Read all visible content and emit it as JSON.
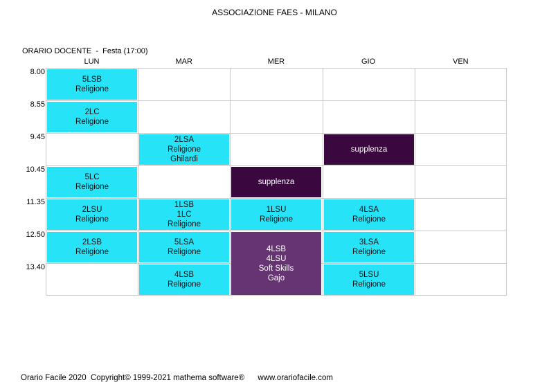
{
  "header": {
    "title": "ASSOCIAZIONE FAES - MILANO",
    "subtitle": "ORARIO DOCENTE  -  Festa (17:00)"
  },
  "days": [
    "LUN",
    "MAR",
    "MER",
    "GIO",
    "VEN"
  ],
  "times": [
    "8.00",
    "8.55",
    "9.45",
    "10.45",
    "11.35",
    "12.50",
    "13.40"
  ],
  "lessons": [
    {
      "day": 0,
      "start": 0,
      "span": 1,
      "style": "cyan",
      "lines": [
        "5LSB",
        "Religione"
      ]
    },
    {
      "day": 0,
      "start": 1,
      "span": 1,
      "style": "cyan",
      "lines": [
        "2LC",
        "Religione"
      ]
    },
    {
      "day": 1,
      "start": 2,
      "span": 1,
      "style": "cyan",
      "lines": [
        "2LSA",
        "Religione",
        "Ghilardi"
      ]
    },
    {
      "day": 3,
      "start": 2,
      "span": 1,
      "style": "dark",
      "lines": [
        "supplenza"
      ]
    },
    {
      "day": 0,
      "start": 3,
      "span": 1,
      "style": "cyan",
      "lines": [
        "5LC",
        "Religione"
      ]
    },
    {
      "day": 2,
      "start": 3,
      "span": 1,
      "style": "dark",
      "lines": [
        "supplenza"
      ]
    },
    {
      "day": 0,
      "start": 4,
      "span": 1,
      "style": "cyan",
      "lines": [
        "2LSU",
        "Religione"
      ]
    },
    {
      "day": 1,
      "start": 4,
      "span": 1,
      "style": "cyan",
      "lines": [
        "1LSB",
        "1LC",
        "Religione"
      ]
    },
    {
      "day": 2,
      "start": 4,
      "span": 1,
      "style": "cyan",
      "lines": [
        "1LSU",
        "Religione"
      ]
    },
    {
      "day": 3,
      "start": 4,
      "span": 1,
      "style": "cyan",
      "lines": [
        "4LSA",
        "Religione"
      ]
    },
    {
      "day": 0,
      "start": 5,
      "span": 1,
      "style": "cyan",
      "lines": [
        "2LSB",
        "Religione"
      ]
    },
    {
      "day": 1,
      "start": 5,
      "span": 1,
      "style": "cyan",
      "lines": [
        "5LSA",
        "Religione"
      ]
    },
    {
      "day": 2,
      "start": 5,
      "span": 2,
      "style": "purple",
      "lines": [
        "4LSB",
        "4LSU",
        "Soft Skills",
        "Gajo"
      ]
    },
    {
      "day": 3,
      "start": 5,
      "span": 1,
      "style": "cyan",
      "lines": [
        "3LSA",
        "Religione"
      ]
    },
    {
      "day": 1,
      "start": 6,
      "span": 1,
      "style": "cyan",
      "lines": [
        "4LSB",
        "Religione"
      ]
    },
    {
      "day": 3,
      "start": 6,
      "span": 1,
      "style": "cyan",
      "lines": [
        "5LSU",
        "Religione"
      ]
    }
  ],
  "colors": {
    "cyan": "#26e3f7",
    "dark": "#3a073f",
    "purple": "#663373",
    "grid": "#c8c8c8"
  },
  "footer": {
    "app": "Orario Facile 2020",
    "copyright": "Copyright© 1999-2021 mathema software®",
    "url": "www.orariofacile.com"
  }
}
